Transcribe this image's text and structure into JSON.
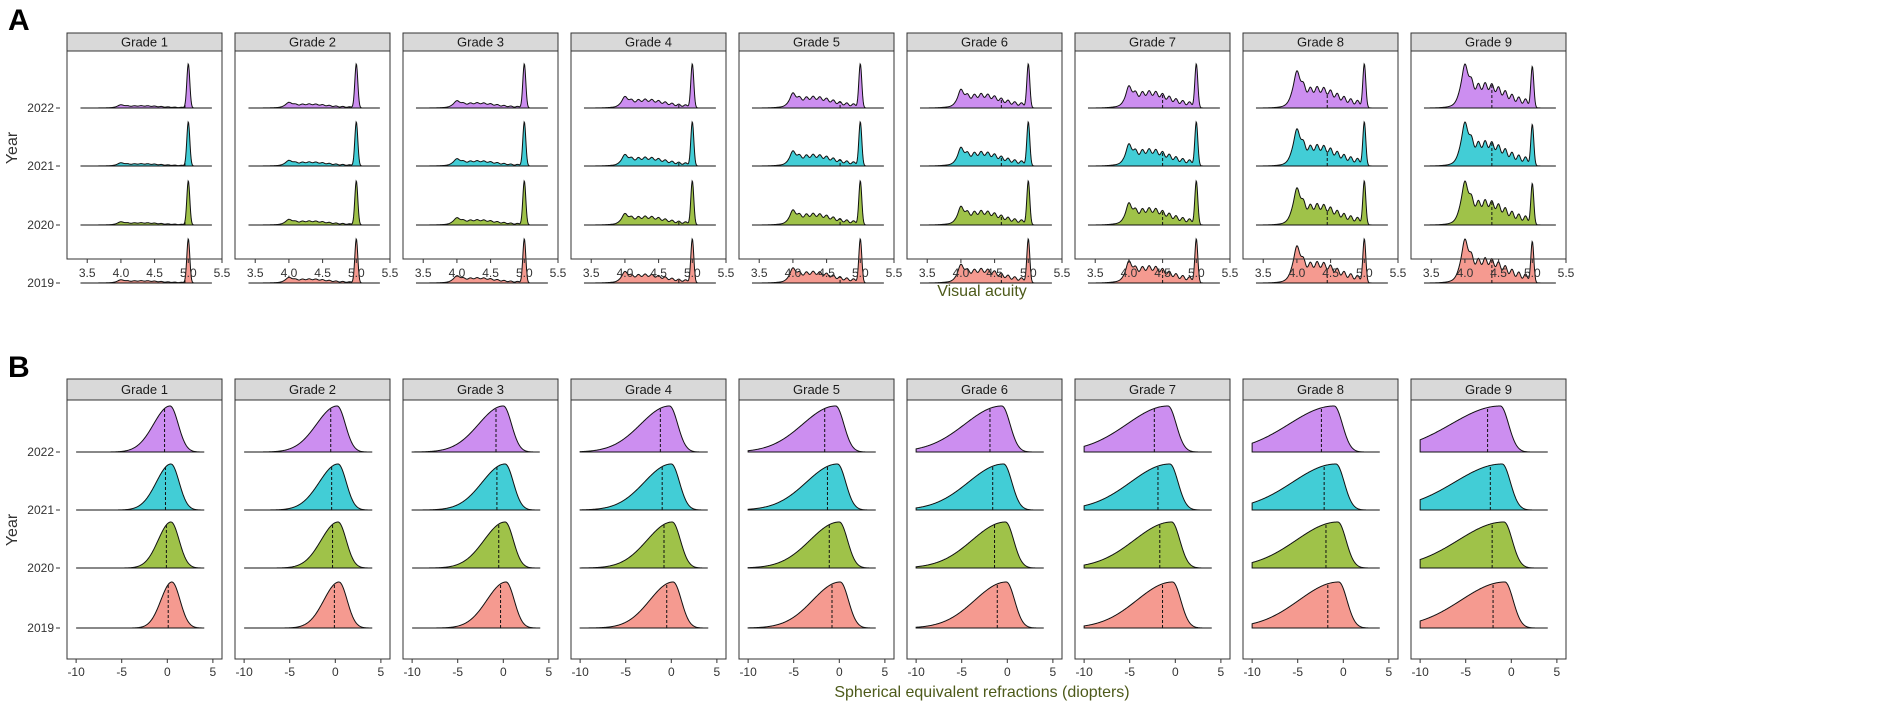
{
  "figure": {
    "panel_a_label": "A",
    "panel_b_label": "B"
  },
  "chart_data": [
    {
      "type": "ridgeline-density",
      "panel": "A",
      "facets": [
        "Grade 1",
        "Grade 2",
        "Grade 3",
        "Grade 4",
        "Grade 5",
        "Grade 6",
        "Grade 7",
        "Grade 8",
        "Grade 9"
      ],
      "years": [
        "2022",
        "2021",
        "2020",
        "2019"
      ],
      "year_colors": {
        "2022": "#cc8ef0",
        "2021": "#42cdd6",
        "2020": "#9fc249",
        "2019": "#f59a90"
      },
      "xlabel": "Visual acuity",
      "ylabel": "Year",
      "xlim": [
        3.2,
        5.5
      ],
      "xticks": [
        "3.5",
        "4.0",
        "4.5",
        "5.0",
        "5.5"
      ],
      "xtick_values": [
        3.5,
        4.0,
        4.5,
        5.0,
        5.5
      ],
      "curve_xrange": [
        3.4,
        5.35
      ],
      "grade_lowmass": [
        0.08,
        0.14,
        0.18,
        0.26,
        0.34,
        0.42,
        0.5,
        0.62,
        0.78
      ],
      "peak_value": 5.0,
      "medians_by_grade": [
        4.95,
        4.9,
        4.85,
        4.8,
        4.7,
        4.6,
        4.5,
        4.45,
        4.4
      ]
    },
    {
      "type": "ridgeline-density",
      "panel": "B",
      "facets": [
        "Grade 1",
        "Grade 2",
        "Grade 3",
        "Grade 4",
        "Grade 5",
        "Grade 6",
        "Grade 7",
        "Grade 8",
        "Grade 9"
      ],
      "years": [
        "2022",
        "2021",
        "2020",
        "2019"
      ],
      "year_colors": {
        "2022": "#cc8ef0",
        "2021": "#42cdd6",
        "2020": "#9fc249",
        "2019": "#f59a90"
      },
      "xlabel": "Spherical equivalent refractions (diopters)",
      "ylabel": "Year",
      "xlim": [
        -11,
        6
      ],
      "xticks": [
        "-10",
        "-5",
        "0",
        "5"
      ],
      "xtick_values": [
        -10,
        -5,
        0,
        5
      ],
      "curve_xrange": [
        -10,
        4
      ],
      "medians": {
        "2022": [
          -0.3,
          -0.5,
          -0.8,
          -1.2,
          -1.6,
          -1.9,
          -2.3,
          -2.4,
          -2.6
        ],
        "2021": [
          -0.2,
          -0.4,
          -0.7,
          -1.0,
          -1.3,
          -1.6,
          -1.9,
          -2.1,
          -2.3
        ],
        "2020": [
          -0.1,
          -0.3,
          -0.5,
          -0.8,
          -1.1,
          -1.4,
          -1.7,
          -1.9,
          -2.1
        ],
        "2019": [
          0.1,
          -0.1,
          -0.3,
          -0.5,
          -0.8,
          -1.1,
          -1.4,
          -1.7,
          -2.0
        ]
      },
      "modes": {
        "2022": [
          0.3,
          0.2,
          0.0,
          -0.2,
          -0.4,
          -0.6,
          -0.8,
          -1.0,
          -1.2
        ],
        "2021": [
          0.4,
          0.3,
          0.2,
          0.0,
          -0.2,
          -0.4,
          -0.6,
          -0.8,
          -1.0
        ],
        "2020": [
          0.4,
          0.3,
          0.2,
          0.1,
          0.0,
          -0.2,
          -0.4,
          -0.6,
          -0.8
        ],
        "2019": [
          0.5,
          0.4,
          0.3,
          0.2,
          0.1,
          -0.1,
          -0.3,
          -0.5,
          -0.7
        ]
      }
    }
  ]
}
